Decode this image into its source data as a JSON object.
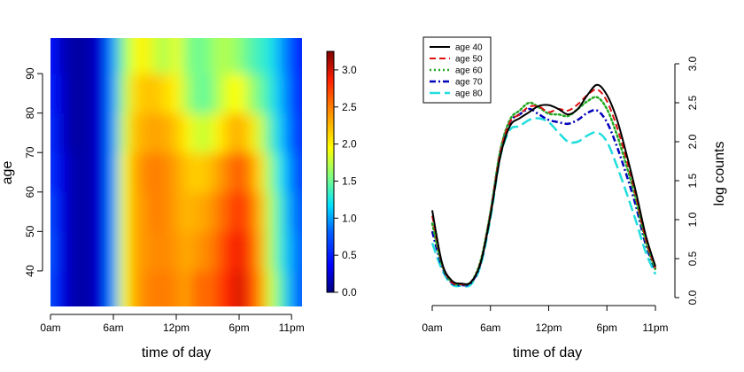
{
  "chart_data": [
    {
      "type": "heatmap",
      "title": "",
      "xlabel": "time of day",
      "ylabel": "age",
      "x_ticks": [
        {
          "label": "0am",
          "hour": 0
        },
        {
          "label": "6am",
          "hour": 6
        },
        {
          "label": "12pm",
          "hour": 12
        },
        {
          "label": "6pm",
          "hour": 18
        },
        {
          "label": "11pm",
          "hour": 23
        }
      ],
      "xlim": [
        0,
        24
      ],
      "ylim": [
        31,
        99
      ],
      "y_ticks": [
        40,
        50,
        60,
        70,
        80,
        90
      ],
      "age_rows": [
        35,
        45,
        55,
        65,
        75,
        85,
        95
      ],
      "hours": [
        0,
        1,
        2,
        3,
        4,
        5,
        6,
        7,
        8,
        9,
        10,
        11,
        12,
        13,
        14,
        15,
        16,
        17,
        18,
        19,
        20,
        21,
        22,
        23,
        24
      ],
      "values": [
        [
          0.7,
          0.3,
          0.15,
          0.1,
          0.15,
          0.3,
          1.0,
          1.9,
          2.3,
          2.45,
          2.5,
          2.5,
          2.45,
          2.35,
          2.6,
          2.55,
          2.7,
          2.85,
          3.0,
          2.75,
          2.4,
          1.8,
          1.4,
          1.0,
          0.7
        ],
        [
          0.75,
          0.3,
          0.15,
          0.1,
          0.15,
          0.3,
          1.0,
          1.9,
          2.3,
          2.4,
          2.45,
          2.45,
          2.4,
          2.3,
          2.4,
          2.45,
          2.6,
          2.8,
          2.9,
          2.7,
          2.3,
          1.7,
          1.3,
          1.0,
          0.75
        ],
        [
          0.7,
          0.3,
          0.15,
          0.1,
          0.15,
          0.3,
          1.0,
          1.9,
          2.3,
          2.4,
          2.5,
          2.45,
          2.35,
          2.25,
          2.3,
          2.35,
          2.5,
          2.65,
          2.8,
          2.6,
          2.25,
          1.7,
          1.3,
          0.95,
          0.7
        ],
        [
          0.6,
          0.3,
          0.15,
          0.1,
          0.15,
          0.3,
          1.0,
          1.9,
          2.3,
          2.45,
          2.5,
          2.45,
          2.35,
          2.2,
          2.15,
          2.2,
          2.35,
          2.5,
          2.65,
          2.45,
          2.1,
          1.6,
          1.2,
          0.9,
          0.6
        ],
        [
          0.55,
          0.25,
          0.1,
          0.1,
          0.15,
          0.3,
          1.0,
          1.8,
          2.2,
          2.3,
          2.35,
          2.3,
          2.2,
          2.0,
          1.8,
          1.8,
          2.0,
          2.2,
          2.3,
          2.1,
          1.8,
          1.4,
          1.1,
          0.8,
          0.55
        ],
        [
          0.5,
          0.25,
          0.1,
          0.1,
          0.15,
          0.3,
          1.0,
          1.7,
          2.1,
          2.2,
          2.2,
          2.1,
          2.0,
          1.7,
          1.5,
          1.5,
          1.7,
          1.9,
          1.95,
          1.7,
          1.5,
          1.3,
          1.05,
          0.75,
          0.5
        ],
        [
          0.45,
          0.2,
          0.1,
          0.1,
          0.15,
          0.3,
          1.0,
          1.6,
          1.9,
          2.0,
          1.8,
          1.7,
          1.9,
          1.6,
          1.5,
          1.55,
          1.7,
          1.7,
          1.6,
          1.45,
          1.35,
          1.25,
          1.0,
          0.7,
          0.45
        ]
      ],
      "colorbar": {
        "range": [
          0.0,
          3.25
        ],
        "ticks": [
          "0.0",
          "0.5",
          "1.0",
          "1.5",
          "2.0",
          "2.5",
          "3.0"
        ]
      }
    },
    {
      "type": "line",
      "title": "",
      "xlabel": "time of day",
      "ylabel": "log  counts",
      "x_ticks": [
        {
          "label": "0am",
          "hour": 0
        },
        {
          "label": "6am",
          "hour": 6
        },
        {
          "label": "12pm",
          "hour": 12
        },
        {
          "label": "6pm",
          "hour": 18
        },
        {
          "label": "11pm",
          "hour": 23
        }
      ],
      "xlim": [
        0,
        23
      ],
      "ylim": [
        0,
        3
      ],
      "y_ticks": [
        "0.0",
        "0.5",
        "1.0",
        "1.5",
        "2.0",
        "2.5",
        "3.0"
      ],
      "y_axis_side": "right",
      "legend_position": "top-left",
      "x": [
        0,
        1,
        2,
        3,
        4,
        5,
        6,
        7,
        8,
        9,
        10,
        11,
        12,
        13,
        14,
        15,
        16,
        17,
        18,
        19,
        20,
        21,
        22,
        23
      ],
      "series": [
        {
          "name": "age 40",
          "color": "#000000",
          "dash": "solid",
          "values": [
            1.12,
            0.45,
            0.22,
            0.18,
            0.2,
            0.45,
            1.05,
            1.8,
            2.2,
            2.3,
            2.38,
            2.46,
            2.47,
            2.42,
            2.35,
            2.42,
            2.6,
            2.73,
            2.6,
            2.3,
            1.85,
            1.35,
            0.8,
            0.4
          ]
        },
        {
          "name": "age 50",
          "color": "#dd1111",
          "dash": "dashed",
          "values": [
            1.05,
            0.44,
            0.2,
            0.17,
            0.2,
            0.46,
            1.08,
            1.85,
            2.25,
            2.35,
            2.45,
            2.45,
            2.38,
            2.42,
            2.4,
            2.48,
            2.6,
            2.67,
            2.52,
            2.2,
            1.78,
            1.3,
            0.75,
            0.38
          ]
        },
        {
          "name": "age 60",
          "color": "#22aa22",
          "dash": "dotted",
          "values": [
            0.95,
            0.42,
            0.2,
            0.17,
            0.2,
            0.48,
            1.1,
            1.88,
            2.28,
            2.4,
            2.5,
            2.44,
            2.36,
            2.35,
            2.33,
            2.42,
            2.52,
            2.57,
            2.42,
            2.1,
            1.7,
            1.25,
            0.72,
            0.36
          ]
        },
        {
          "name": "age 70",
          "color": "#0000bb",
          "dash": "dashdot",
          "values": [
            0.85,
            0.4,
            0.19,
            0.16,
            0.19,
            0.45,
            1.08,
            1.86,
            2.25,
            2.35,
            2.42,
            2.35,
            2.28,
            2.25,
            2.23,
            2.28,
            2.37,
            2.4,
            2.25,
            1.95,
            1.58,
            1.17,
            0.68,
            0.35
          ]
        },
        {
          "name": "age 80",
          "color": "#22dddd",
          "dash": "longdash",
          "values": [
            0.7,
            0.36,
            0.17,
            0.15,
            0.17,
            0.42,
            1.02,
            1.8,
            2.15,
            2.2,
            2.28,
            2.3,
            2.25,
            2.12,
            2.0,
            2.0,
            2.08,
            2.12,
            2.0,
            1.7,
            1.35,
            0.98,
            0.58,
            0.3
          ]
        }
      ]
    }
  ]
}
